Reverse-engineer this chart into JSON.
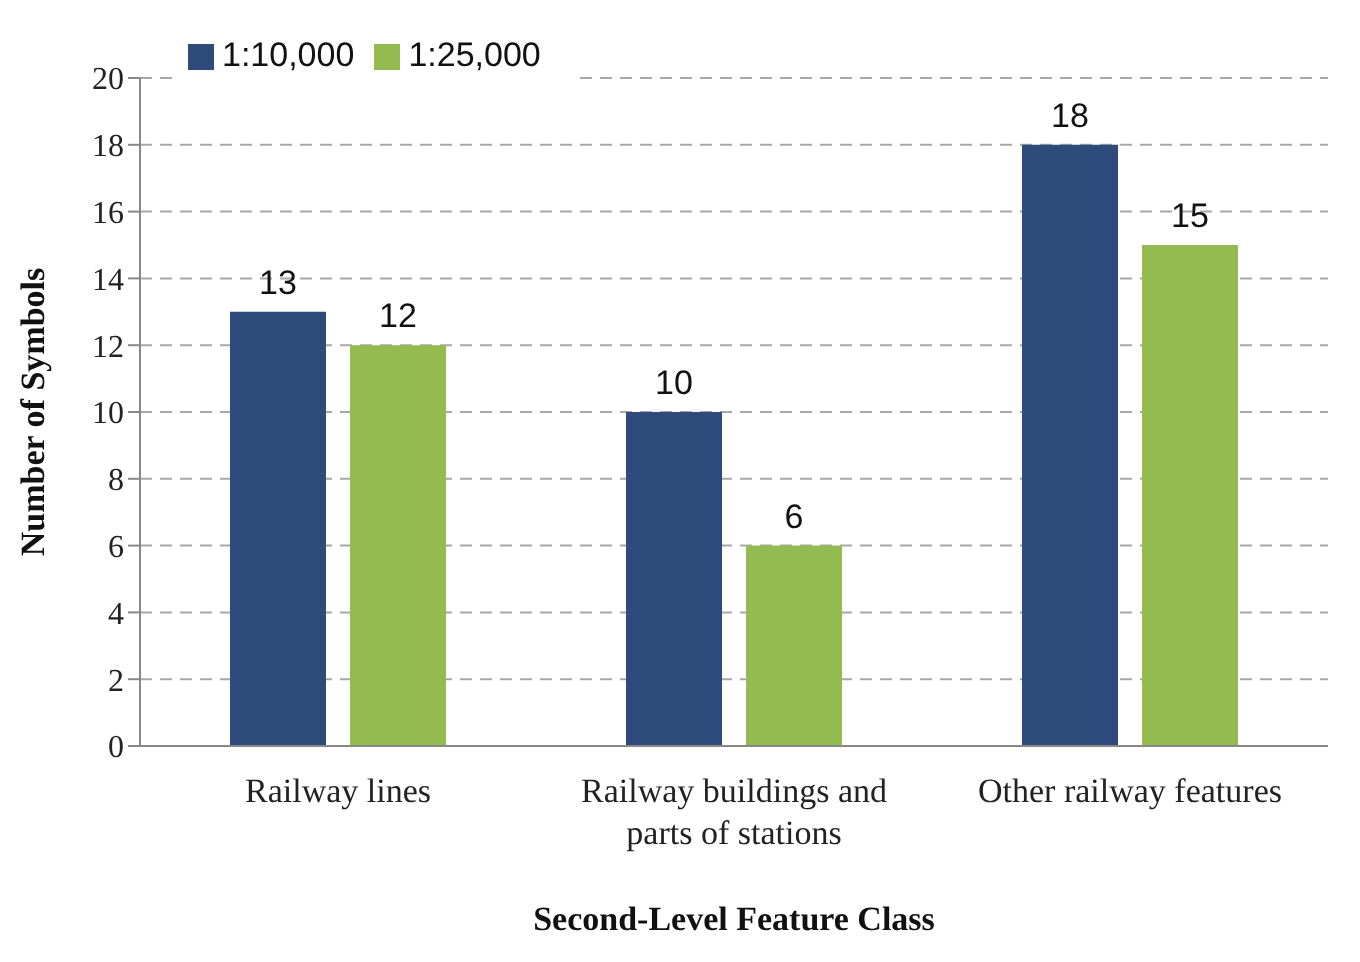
{
  "chart_data": {
    "type": "bar",
    "xlabel": "Second-Level Feature Class",
    "ylabel": "Number of Symbols",
    "categories": [
      "Railway lines",
      "Railway buildings and parts of stations",
      "Other railway features"
    ],
    "series": [
      {
        "name": "1:10,000",
        "color": "#2e4b7b",
        "values": [
          13,
          10,
          18
        ]
      },
      {
        "name": "1:25,000",
        "color": "#93bb50",
        "values": [
          12,
          6,
          15
        ]
      }
    ],
    "ylim": [
      0,
      20
    ],
    "yticks": [
      0,
      2,
      4,
      6,
      8,
      10,
      12,
      14,
      16,
      18,
      20
    ],
    "grid": "y",
    "legend": "top left",
    "data_labels": true
  }
}
